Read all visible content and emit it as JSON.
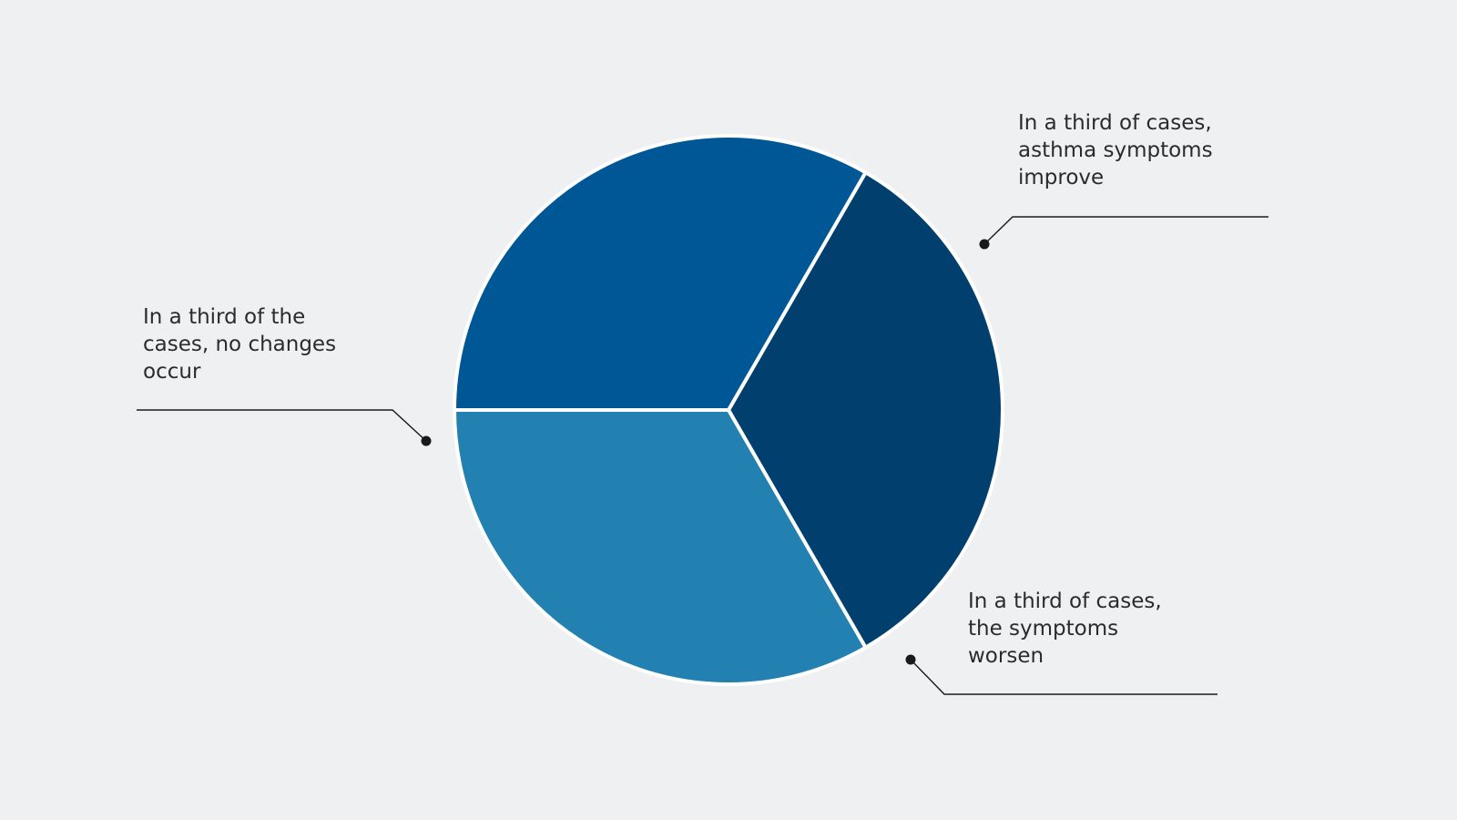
{
  "chart_data": {
    "type": "pie",
    "slices": [
      {
        "key": "improve",
        "value": 33.3,
        "color": "#003f6e",
        "label_lines": [
          "In a third of cases,",
          "asthma symptoms",
          "improve"
        ]
      },
      {
        "key": "worsen",
        "value": 33.3,
        "color": "#2281b1",
        "label_lines": [
          "In a third of cases,",
          "the symptoms",
          "worsen"
        ]
      },
      {
        "key": "nochange",
        "value": 33.3,
        "color": "#005795",
        "label_lines": [
          "In a third of the",
          "cases, no changes",
          "occur"
        ]
      }
    ],
    "background": "#eff0f2",
    "separator_color": "#ffffff",
    "leader_color": "#1a1a1a"
  }
}
